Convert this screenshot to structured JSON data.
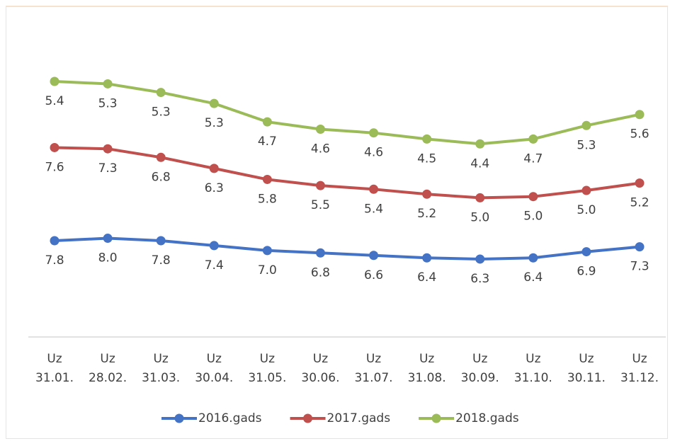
{
  "chart_data": {
    "type": "line",
    "stacked": true,
    "categories": [
      "Uz 31.01.",
      "Uz 28.02.",
      "Uz 31.03.",
      "Uz 30.04.",
      "Uz 31.05.",
      "Uz 30.06.",
      "Uz 31.07.",
      "Uz 31.08.",
      "Uz 30.09.",
      "Uz 31.10.",
      "Uz 30.11.",
      "Uz 31.12."
    ],
    "ylim": [
      0,
      26
    ],
    "legend": "bottom",
    "series": [
      {
        "name": "2016.gads",
        "color": "#4472c4",
        "values": [
          7.8,
          8.0,
          7.8,
          7.4,
          7.0,
          6.8,
          6.6,
          6.4,
          6.3,
          6.4,
          6.9,
          7.3
        ],
        "value_labels": [
          "7.8",
          "8.0",
          "7.8",
          "7.4",
          "7.0",
          "6.8",
          "6.6",
          "6.4",
          "6.3",
          "6.4",
          "6.9",
          "7.3"
        ]
      },
      {
        "name": "2017.gads",
        "color": "#c0504d",
        "values": [
          7.6,
          7.3,
          6.8,
          6.3,
          5.8,
          5.5,
          5.4,
          5.2,
          5.0,
          5.0,
          5.0,
          5.2
        ],
        "value_labels": [
          "7.6",
          "7.3",
          "6.8",
          "6.3",
          "5.8",
          "5.5",
          "5.4",
          "5.2",
          "5.0",
          "5.0",
          "5.0",
          "5.2"
        ]
      },
      {
        "name": "2018.gads",
        "color": "#9bbb59",
        "values": [
          5.4,
          5.3,
          5.3,
          5.3,
          4.7,
          4.6,
          4.6,
          4.5,
          4.4,
          4.7,
          5.3,
          5.6
        ],
        "value_labels": [
          "5.4",
          "5.3",
          "5.3",
          "5.3",
          "4.7",
          "4.6",
          "4.6",
          "4.5",
          "4.4",
          "4.7",
          "5.3",
          "5.6"
        ]
      }
    ]
  }
}
